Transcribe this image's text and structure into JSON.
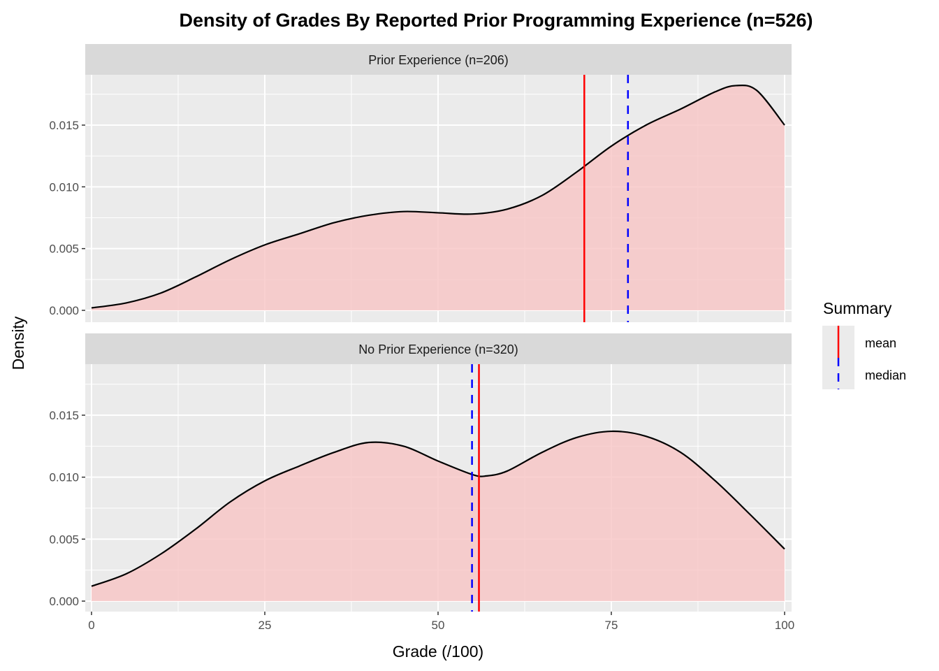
{
  "chart_data": {
    "type": "area",
    "title": "Density of Grades By Reported Prior Programming Experience (n=526)",
    "xlabel": "Grade (/100)",
    "ylabel": "Density",
    "xlim": [
      0,
      100
    ],
    "ylim": [
      0,
      0.019
    ],
    "x_ticks": [
      "0",
      "25",
      "50",
      "75",
      "100"
    ],
    "x_tick_values": [
      0,
      25,
      50,
      75,
      100
    ],
    "y_ticks": [
      "0.000",
      "0.005",
      "0.010",
      "0.015"
    ],
    "y_tick_values": [
      0,
      0.005,
      0.01,
      0.015
    ],
    "grid": true,
    "fill_color": "#f8c4c4",
    "mean_color": "#ff0000",
    "median_color": "#0000ff",
    "legend": {
      "title": "Summary",
      "position": "right",
      "entries": [
        {
          "label": "mean",
          "style": "solid",
          "color": "#ff0000"
        },
        {
          "label": "median",
          "style": "dashed",
          "color": "#0000ff"
        }
      ]
    },
    "panels": [
      {
        "label": "Prior Experience (n=206)",
        "mean": 71.1,
        "median": 77.4,
        "x": [
          0,
          5,
          10,
          15,
          20,
          25,
          30,
          35,
          40,
          45,
          50,
          55,
          60,
          65,
          70,
          75,
          80,
          85,
          90,
          93,
          96,
          100
        ],
        "y": [
          0.0002,
          0.0006,
          0.0014,
          0.0027,
          0.0041,
          0.0053,
          0.0062,
          0.0071,
          0.0077,
          0.008,
          0.0079,
          0.0078,
          0.0082,
          0.0093,
          0.0112,
          0.0133,
          0.015,
          0.0163,
          0.0177,
          0.0182,
          0.0178,
          0.015
        ]
      },
      {
        "label": "No Prior Experience (n=320)",
        "mean": 55.9,
        "median": 54.9,
        "x": [
          0,
          5,
          10,
          15,
          20,
          25,
          30,
          35,
          40,
          45,
          50,
          55,
          57,
          60,
          65,
          70,
          75,
          80,
          85,
          90,
          95,
          100
        ],
        "y": [
          0.0012,
          0.0022,
          0.0038,
          0.0058,
          0.008,
          0.0097,
          0.0109,
          0.012,
          0.0128,
          0.0125,
          0.0113,
          0.0102,
          0.0101,
          0.0105,
          0.012,
          0.0132,
          0.0137,
          0.0133,
          0.012,
          0.0097,
          0.007,
          0.0042
        ]
      }
    ]
  }
}
